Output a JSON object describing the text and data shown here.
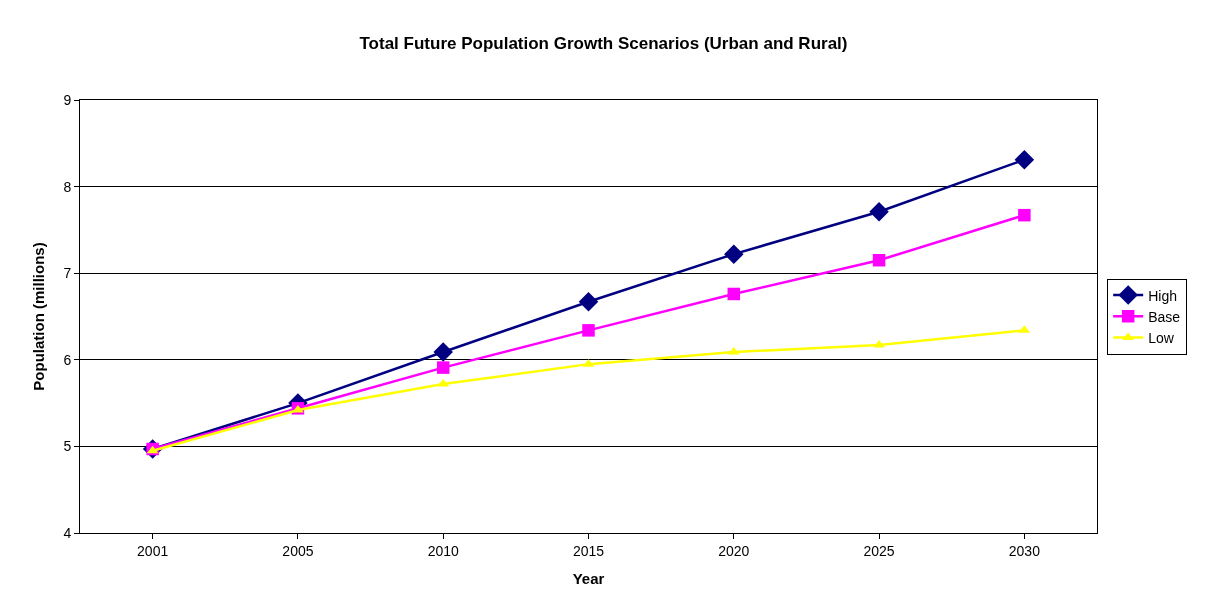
{
  "chart_data": {
    "type": "line",
    "title": "Total Future Population Growth Scenarios (Urban and Rural)",
    "xlabel": "Year",
    "ylabel": "Population (millions)",
    "categories": [
      "2001",
      "2005",
      "2010",
      "2015",
      "2020",
      "2025",
      "2030"
    ],
    "series": [
      {
        "name": "High",
        "color": "#000080",
        "marker": "diamond",
        "values": [
          4.97,
          5.5,
          6.09,
          6.67,
          7.22,
          7.71,
          8.31
        ]
      },
      {
        "name": "Base",
        "color": "#ff00ff",
        "marker": "square",
        "values": [
          4.97,
          5.44,
          5.91,
          6.34,
          6.76,
          7.15,
          7.67
        ]
      },
      {
        "name": "Low",
        "color": "#ffff00",
        "marker": "triangle",
        "values": [
          4.95,
          5.42,
          5.72,
          5.95,
          6.09,
          6.17,
          6.34
        ]
      }
    ],
    "ylim": [
      4,
      9
    ],
    "yticks": [
      4,
      5,
      6,
      7,
      8,
      9
    ],
    "grid": "y",
    "legend": "right",
    "line_style": "solid"
  }
}
